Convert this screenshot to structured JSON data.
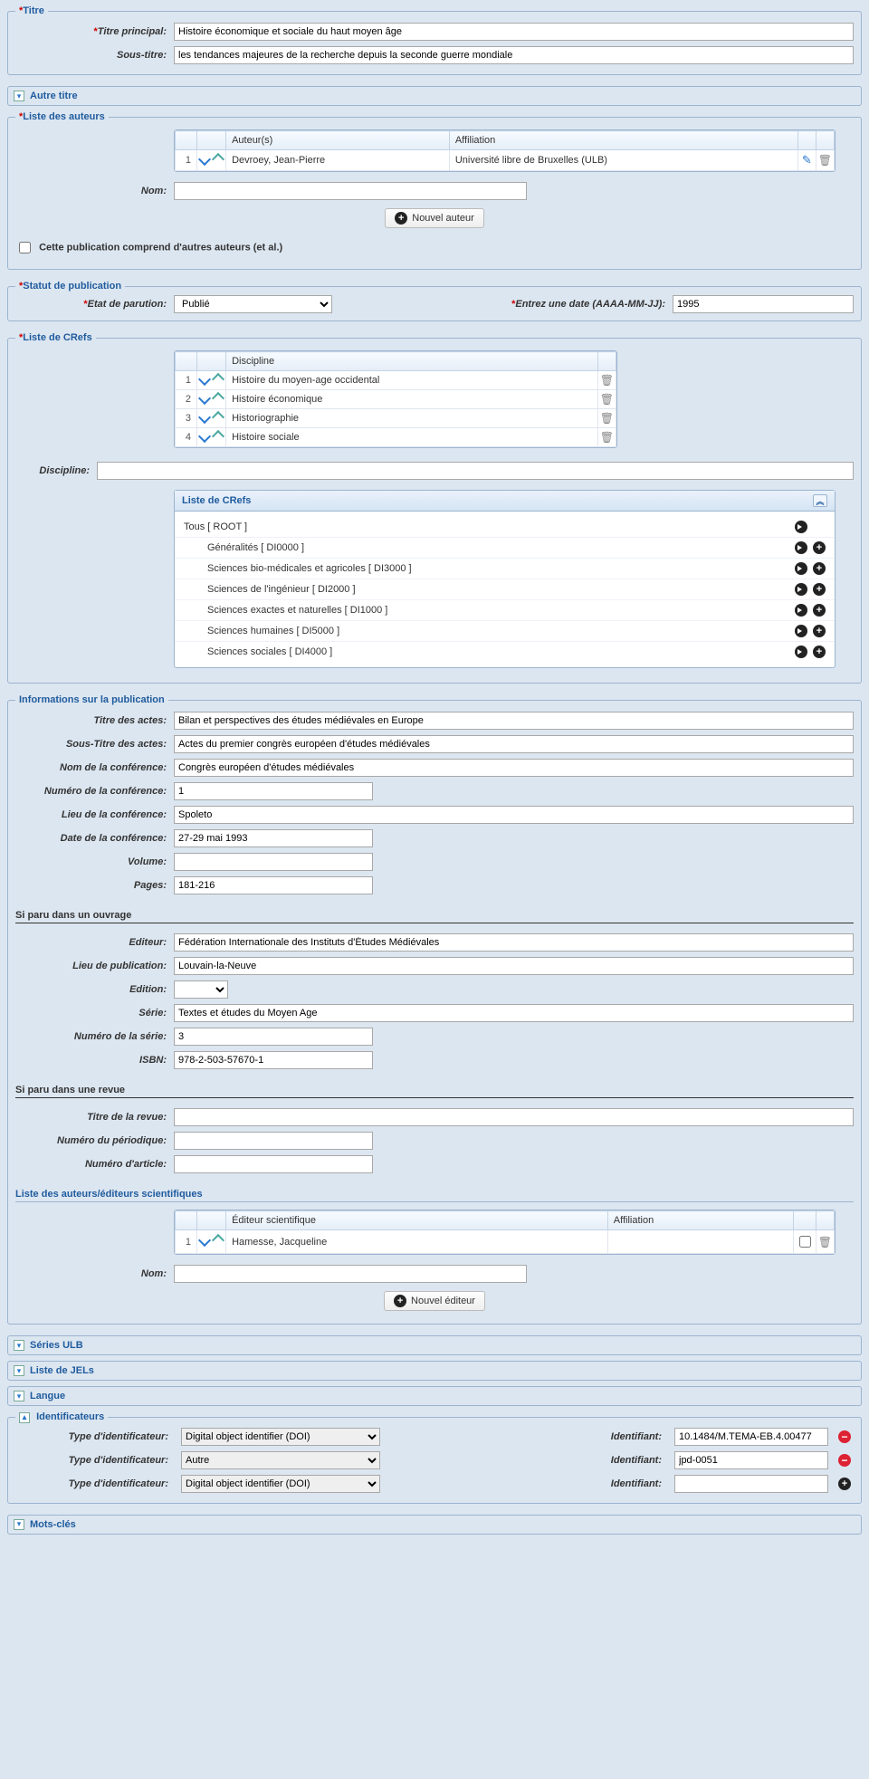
{
  "colors": {
    "page_bg": "#dce6f0",
    "border": "#9bb4d0",
    "legend": "#1f5b9e",
    "required": "#cc0000"
  },
  "titre": {
    "legend": "Titre",
    "principal_label": "Titre principal:",
    "principal_value": "Histoire économique et sociale du haut moyen âge",
    "sous_label": "Sous-titre:",
    "sous_value": "les tendances majeures de la recherche depuis la seconde guerre mondiale"
  },
  "autre_titre": {
    "legend": "Autre titre"
  },
  "auteurs": {
    "legend": "Liste des auteurs",
    "col_author": "Auteur(s)",
    "col_affil": "Affiliation",
    "rows": [
      {
        "idx": "1",
        "name": "Devroey, Jean-Pierre",
        "affil": "Université libre de Bruxelles (ULB)"
      }
    ],
    "nom_label": "Nom:",
    "nom_value": "",
    "add_btn": "Nouvel auteur",
    "etal_label": "Cette publication comprend d'autres auteurs (et al.)"
  },
  "statut": {
    "legend": "Statut de publication",
    "etat_label": "Etat de parution:",
    "etat_value": "Publié",
    "date_label": "Entrez une date (AAAA-MM-JJ):",
    "date_value": "1995"
  },
  "crefs": {
    "legend": "Liste de CRefs",
    "col_disc": "Discipline",
    "rows": [
      {
        "idx": "1",
        "name": "Histoire du moyen-age occidental"
      },
      {
        "idx": "2",
        "name": "Histoire économique"
      },
      {
        "idx": "3",
        "name": "Historiographie"
      },
      {
        "idx": "4",
        "name": "Histoire sociale"
      }
    ],
    "discipline_label": "Discipline:",
    "discipline_value": "",
    "tree_title": "Liste de CRefs",
    "tree": [
      {
        "label": "Tous [ ROOT ]",
        "indent": 0,
        "add": false
      },
      {
        "label": "Généralités [ DI0000 ]",
        "indent": 1,
        "add": true
      },
      {
        "label": "Sciences bio-médicales et agricoles [ DI3000 ]",
        "indent": 1,
        "add": true
      },
      {
        "label": "Sciences de l'ingénieur [ DI2000 ]",
        "indent": 1,
        "add": true
      },
      {
        "label": "Sciences exactes et naturelles [ DI1000 ]",
        "indent": 1,
        "add": true
      },
      {
        "label": "Sciences humaines [ DI5000 ]",
        "indent": 1,
        "add": true
      },
      {
        "label": "Sciences sociales [ DI4000 ]",
        "indent": 1,
        "add": true
      }
    ]
  },
  "pub": {
    "legend": "Informations sur la publication",
    "titre_actes_label": "Titre des actes:",
    "titre_actes": "Bilan et perspectives des études médiévales en Europe",
    "sous_titre_actes_label": "Sous-Titre des actes:",
    "sous_titre_actes": "Actes du premier congrès européen d'études médiévales",
    "nom_conf_label": "Nom de la conférence:",
    "nom_conf": "Congrès européen d'études médiévales",
    "num_conf_label": "Numéro de la conférence:",
    "num_conf": "1",
    "lieu_conf_label": "Lieu de la conférence:",
    "lieu_conf": "Spoleto",
    "date_conf_label": "Date de la conférence:",
    "date_conf": "27-29 mai 1993",
    "volume_label": "Volume:",
    "volume": "",
    "pages_label": "Pages:",
    "pages": "181-216",
    "ouvrage_heading": "Si paru dans un ouvrage",
    "editeur_label": "Editeur:",
    "editeur": "Fédération Internationale des Instituts d'Études Médiévales",
    "lieu_pub_label": "Lieu de publication:",
    "lieu_pub": "Louvain-la-Neuve",
    "edition_label": "Edition:",
    "edition": "",
    "serie_label": "Série:",
    "serie": "Textes et études du Moyen Age",
    "num_serie_label": "Numéro de la série:",
    "num_serie": "3",
    "isbn_label": "ISBN:",
    "isbn": "978-2-503-57670-1",
    "revue_heading": "Si paru dans une revue",
    "titre_revue_label": "Titre de la revue:",
    "titre_revue": "",
    "num_period_label": "Numéro du périodique:",
    "num_period": "",
    "num_art_label": "Numéro d'article:",
    "num_art": "",
    "editors_heading": "Liste des auteurs/éditeurs scientifiques",
    "col_editor": "Éditeur scientifique",
    "col_affil": "Affiliation",
    "editors": [
      {
        "idx": "1",
        "name": "Hamesse, Jacqueline",
        "affil": ""
      }
    ],
    "editor_nom_label": "Nom:",
    "editor_nom_value": "",
    "editor_add_btn": "Nouvel éditeur"
  },
  "series_ulb": {
    "legend": "Séries ULB"
  },
  "jels": {
    "legend": "Liste de JELs"
  },
  "langue": {
    "legend": "Langue"
  },
  "ident": {
    "legend": "Identificateurs",
    "type_label": "Type d'identificateur:",
    "id_label": "Identifiant:",
    "rows": [
      {
        "type": "Digital object identifier (DOI)",
        "value": "10.1484/M.TEMA-EB.4.00477",
        "action": "remove"
      },
      {
        "type": "Autre",
        "value": "jpd-0051",
        "action": "remove"
      },
      {
        "type": "Digital object identifier (DOI)",
        "value": "",
        "action": "add"
      }
    ]
  },
  "mots_cles": {
    "legend": "Mots-clés"
  }
}
